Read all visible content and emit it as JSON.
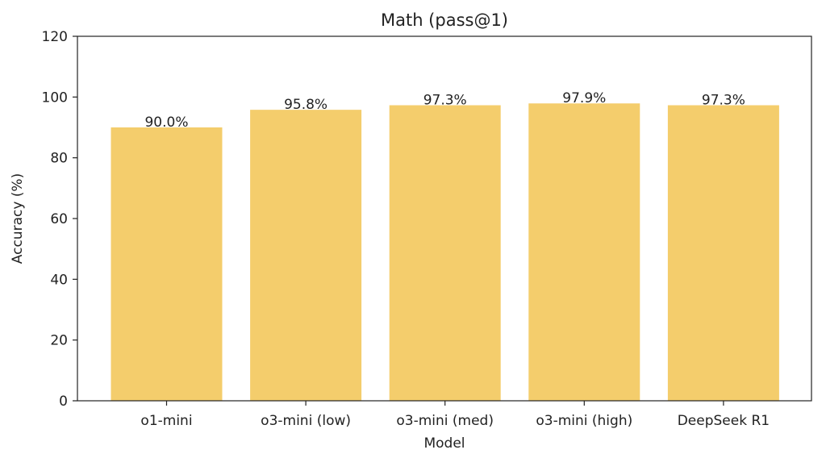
{
  "chart_data": {
    "type": "bar",
    "title": "Math (pass@1)",
    "xlabel": "Model",
    "ylabel": "Accuracy (%)",
    "categories": [
      "o1-mini",
      "o3-mini (low)",
      "o3-mini (med)",
      "o3-mini (high)",
      "DeepSeek R1"
    ],
    "values": [
      90.0,
      95.8,
      97.3,
      97.9,
      97.3
    ],
    "data_labels": [
      "90.0%",
      "95.8%",
      "97.3%",
      "97.9%",
      "97.3%"
    ],
    "ylim": [
      0,
      120
    ],
    "yticks": [
      0,
      20,
      40,
      60,
      80,
      100,
      120
    ],
    "bar_color": "#f4cd6c",
    "grid": false,
    "legend": "none"
  }
}
